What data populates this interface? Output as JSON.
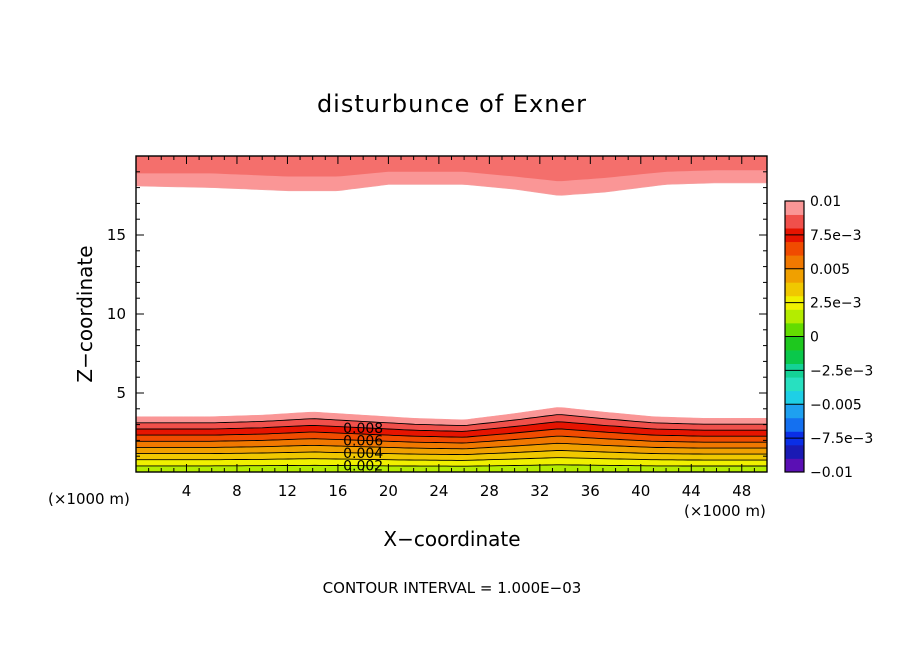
{
  "chart_data": {
    "type": "contour",
    "title": "disturbunce of Exner",
    "xlabel": "X−coordinate",
    "ylabel": "Z−coordinate",
    "x_unit": "(×1000 m)",
    "xlim": [
      0,
      50
    ],
    "ylim": [
      0,
      20
    ],
    "x_ticks": [
      "4",
      "8",
      "12",
      "16",
      "20",
      "24",
      "28",
      "32",
      "36",
      "40",
      "44",
      "48"
    ],
    "x_tick_values": [
      4,
      8,
      12,
      16,
      20,
      24,
      28,
      32,
      36,
      40,
      44,
      48
    ],
    "y_ticks": [
      "5",
      "10",
      "15"
    ],
    "y_tick_values": [
      5,
      10,
      15
    ],
    "contour_interval_text": "CONTOUR INTERVAL = 1.000E−03",
    "contour_labels": [
      "0.008",
      "0.006",
      "0.004",
      "0.002"
    ],
    "contour_label_values": [
      0.008,
      0.006,
      0.004,
      0.002
    ],
    "colorbar": {
      "min": -0.01,
      "max": 0.01,
      "tick_labels": [
        "0.01",
        "7.5e−3",
        "0.005",
        "2.5e−3",
        "0",
        "−2.5e−3",
        "−0.005",
        "−7.5e−3",
        "−0.01"
      ],
      "colors": [
        "#5a0fb4",
        "#1a1ab4",
        "#0a2ee6",
        "#1470f0",
        "#1ea0f0",
        "#1ecfe6",
        "#28e0c0",
        "#14d296",
        "#0ac84b",
        "#1ec81e",
        "#64dc00",
        "#b4ec00",
        "#f0f000",
        "#f0c800",
        "#f0a000",
        "#f07800",
        "#f04b00",
        "#e61400",
        "#f0504b",
        "#fa9696"
      ]
    },
    "lower_band": {
      "x": [
        0,
        6,
        10,
        14,
        18,
        22,
        26,
        30,
        33.5,
        37,
        41,
        45,
        50
      ],
      "top_z": [
        3.5,
        3.5,
        3.6,
        3.8,
        3.6,
        3.4,
        3.3,
        3.7,
        4.1,
        3.8,
        3.5,
        3.4,
        3.4
      ],
      "base_z": 0.0,
      "value_top": 0.01,
      "value_bottom": 0.001,
      "contour_lines": [
        0.009,
        0.008,
        0.007,
        0.006,
        0.005,
        0.004,
        0.003,
        0.002,
        0.001
      ]
    },
    "upper_band": {
      "x": [
        0,
        6,
        12,
        16,
        20,
        26,
        30,
        33.5,
        37,
        42,
        46,
        50
      ],
      "bottom_z": [
        18.1,
        18.0,
        17.8,
        17.8,
        18.2,
        18.2,
        17.9,
        17.5,
        17.7,
        18.2,
        18.3,
        18.3
      ],
      "mid_z": [
        18.9,
        18.9,
        18.7,
        18.7,
        19.0,
        19.0,
        18.7,
        18.4,
        18.6,
        19.0,
        19.1,
        19.1
      ],
      "top_z": 20.0,
      "value_outer": 0.009,
      "value_inner": 0.0095
    }
  }
}
